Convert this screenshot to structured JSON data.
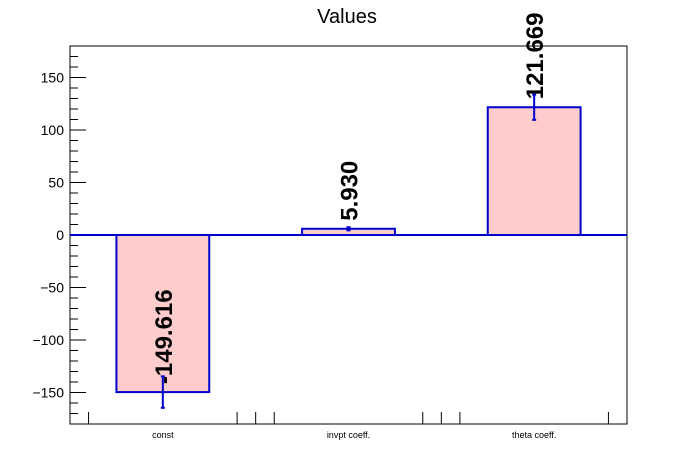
{
  "chart_data": {
    "type": "bar",
    "title": "Values",
    "categories": [
      "const",
      "invpt coeff.",
      "theta coeff."
    ],
    "values": [
      -149.616,
      5.93,
      121.669
    ],
    "errors": [
      15,
      1.5,
      12
    ],
    "value_labels": [
      "-149.616",
      "5.930",
      "121.669"
    ],
    "ylim": [
      -180,
      180
    ],
    "yticks": [
      -150,
      -100,
      -50,
      0,
      50,
      100,
      150
    ],
    "ytick_labels": [
      "−150",
      "−100",
      "−50",
      "0",
      "50",
      "100",
      "150"
    ],
    "xlabel": "",
    "ylabel": "",
    "grid": false,
    "bar_fill": "#ffcccc",
    "bar_edge": "#0000cc",
    "error_color": "#0000cc",
    "zero_line_color": "#0000cc"
  }
}
